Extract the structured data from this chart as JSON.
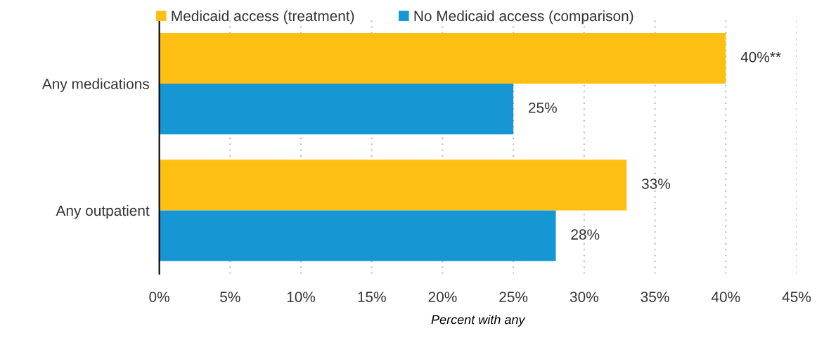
{
  "chart_data": {
    "type": "bar",
    "orientation": "horizontal",
    "categories": [
      "Any medications",
      "Any outpatient"
    ],
    "series": [
      {
        "name": "Medicaid access (treatment)",
        "color": "#fdbf11",
        "values": [
          40,
          33
        ],
        "value_labels": [
          "40%**",
          "33%"
        ]
      },
      {
        "name": "No Medicaid access (comparison)",
        "color": "#1696d2",
        "values": [
          25,
          28
        ],
        "value_labels": [
          "25%",
          "28%"
        ]
      }
    ],
    "xlabel": "Percent with any",
    "xlim": [
      0,
      45
    ],
    "xticks": [
      {
        "value": 0,
        "label": "0%"
      },
      {
        "value": 5,
        "label": "5%"
      },
      {
        "value": 10,
        "label": "10%"
      },
      {
        "value": 15,
        "label": "15%"
      },
      {
        "value": 20,
        "label": "20%"
      },
      {
        "value": 25,
        "label": "25%"
      },
      {
        "value": 30,
        "label": "30%"
      },
      {
        "value": 35,
        "label": "35%"
      },
      {
        "value": 40,
        "label": "40%"
      },
      {
        "value": 45,
        "label": "45%"
      }
    ],
    "grid": "x",
    "legend": "top left"
  }
}
